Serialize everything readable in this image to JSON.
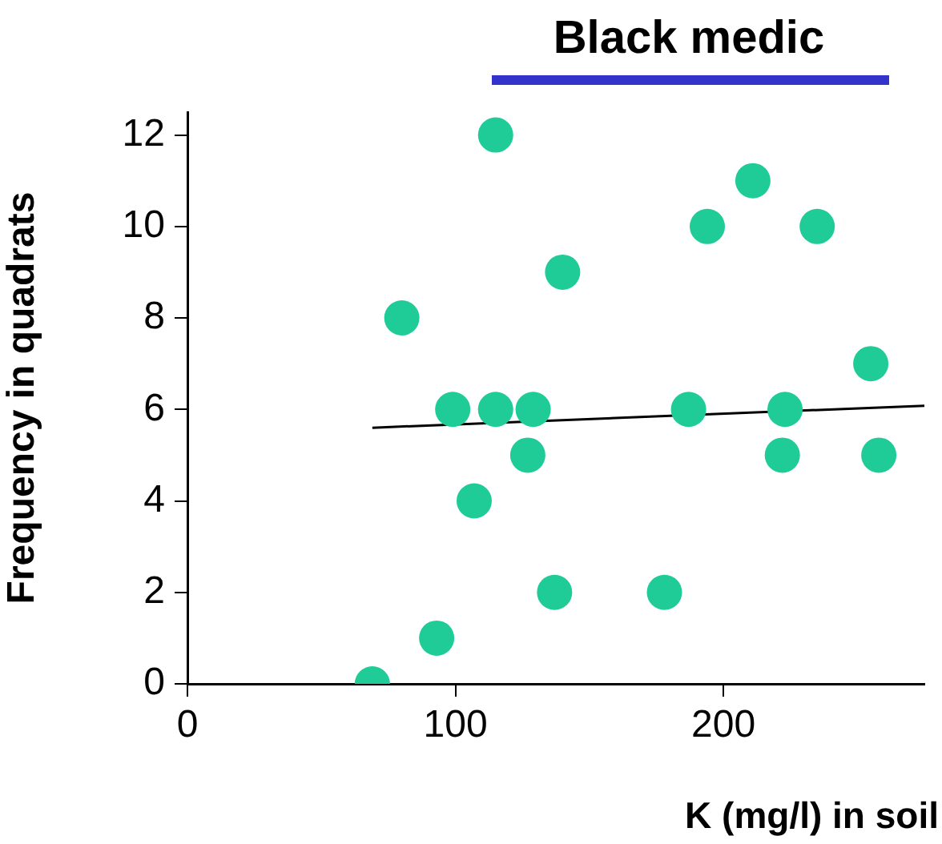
{
  "chart_data": {
    "type": "scatter",
    "title": "Black medic",
    "xlabel": "K (mg/l) in soil",
    "ylabel": "Frequency in quadrats",
    "series": [
      {
        "color": "#1fcc98",
        "x": [
          69,
          80,
          93,
          99,
          107,
          115,
          115,
          129,
          127,
          137,
          140,
          178,
          187,
          194,
          211,
          223,
          222,
          235,
          255,
          258
        ],
        "values": [
          0,
          8,
          1,
          6,
          4,
          12,
          6,
          6,
          5,
          2,
          9,
          2,
          6,
          10,
          11,
          6,
          5,
          10,
          7,
          5
        ]
      },
      {
        "type": "line",
        "color": "#000000",
        "marker": "none",
        "x": [
          69,
          275
        ],
        "values": [
          5.6,
          6.08
        ]
      }
    ],
    "xlim": [
      0,
      275
    ],
    "xticks": [
      0,
      100,
      200
    ],
    "ylim": [
      0,
      12.5
    ],
    "yticks": [
      0,
      2,
      4,
      6,
      8,
      10,
      12
    ],
    "grid": false,
    "legend": false,
    "marker": "circle"
  }
}
